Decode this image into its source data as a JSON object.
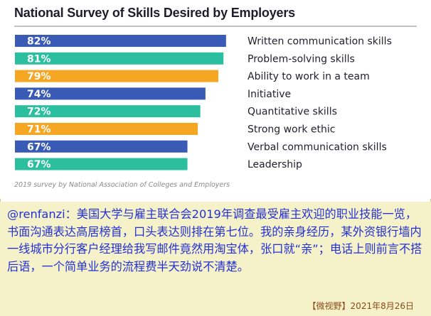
{
  "chart_data": {
    "type": "bar",
    "orientation": "horizontal",
    "title": "National Survey of Skills Desired by Employers",
    "categories": [
      "Written communication skills",
      "Problem-solving skills",
      "Ability to work in a team",
      "Initiative",
      "Quantitative skills",
      "Strong work ethic",
      "Verbal communication skills",
      "Leadership"
    ],
    "values": [
      82,
      81,
      79,
      74,
      72,
      71,
      67,
      67
    ],
    "value_labels": [
      "82%",
      "81%",
      "79%",
      "74%",
      "72%",
      "71%",
      "67%",
      "67%"
    ],
    "bar_colors": [
      "#3a5bb5",
      "#2bbfa0",
      "#f5a623",
      "#3a5bb5",
      "#2bbfa0",
      "#f5a623",
      "#3a5bb5",
      "#2bbfa0"
    ],
    "xlim": [
      0,
      100
    ],
    "grid": false,
    "legend": "none",
    "footnote": "2019 survey by National Association of Colleges and Employers"
  },
  "caption": {
    "handle": "@renfanzi：",
    "text": "美国大学与雇主联合会2019年调查最受雇主欢迎的职业技能一览，书面沟通表达高居榜首，口头表达则排在第七位。我的亲身经历，某外资银行墙内一线城市分行客户经理给我写邮件竟然用淘宝体，张口就“亲”；电话上则前言不搭后语，一个简单业务的流程费半天劲说不清楚。",
    "source_date": "【微视野】2021年8月26日"
  },
  "colors": {
    "caption_background": "#f5f1c8",
    "caption_text": "#2330d6",
    "date_text": "#8b4a1a"
  }
}
